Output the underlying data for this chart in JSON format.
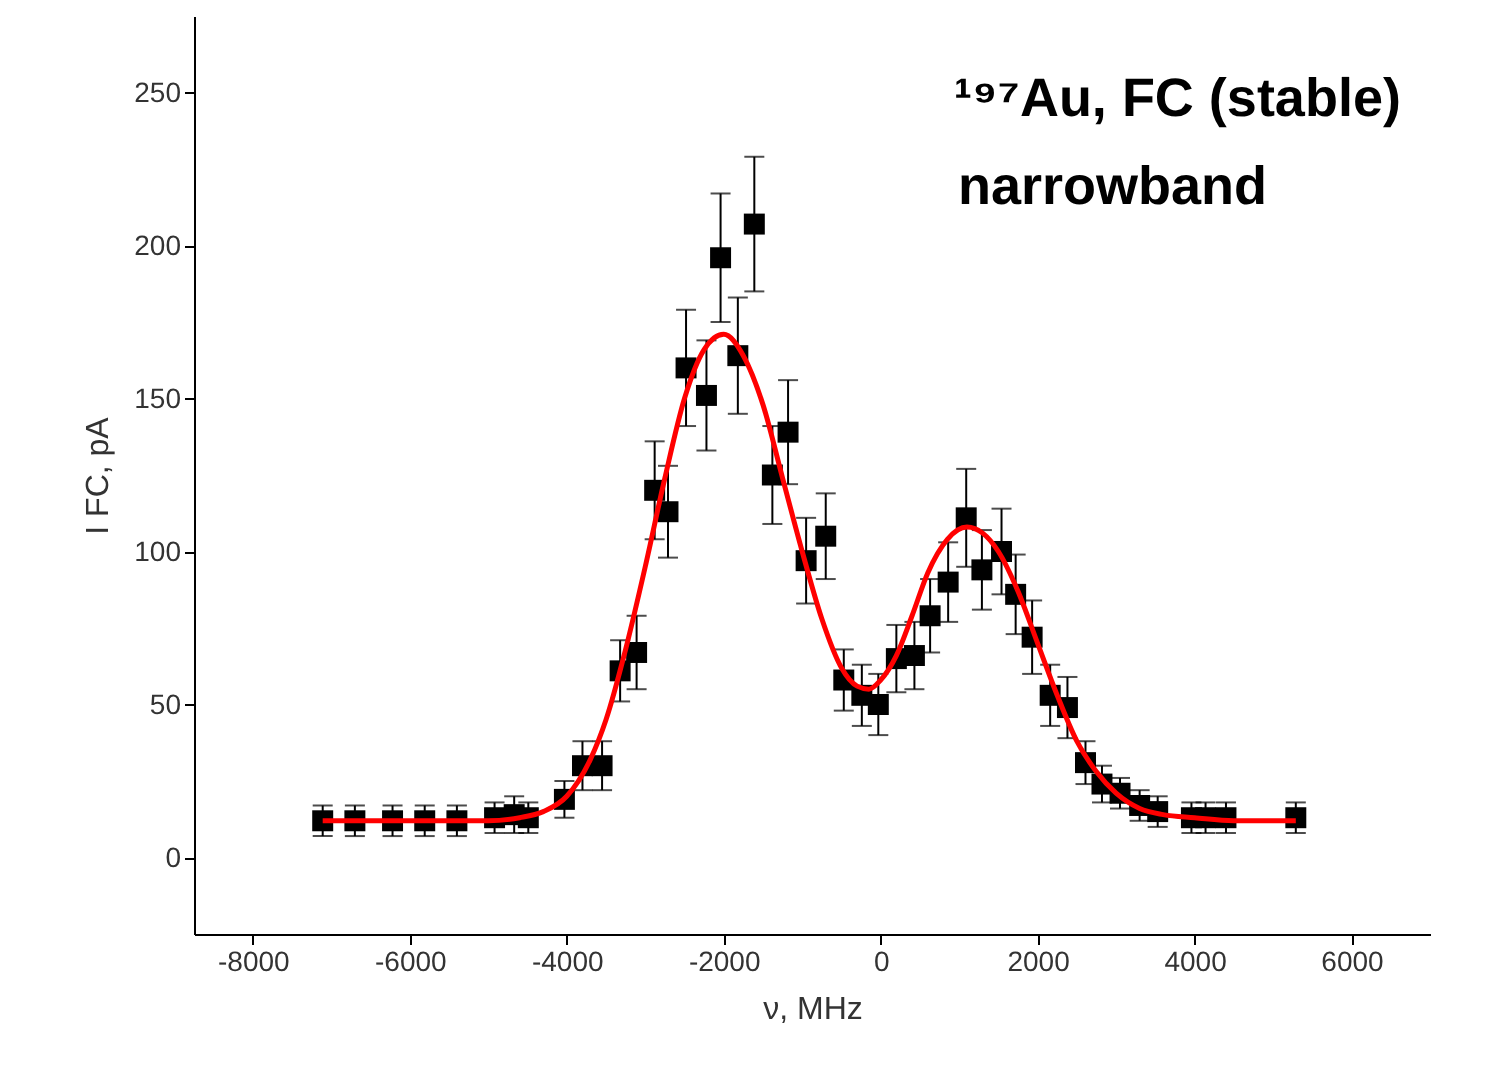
{
  "chart_data": {
    "type": "scatter",
    "xlabel": "ν, MHz",
    "ylabel": "I FC, pA",
    "annotations": [
      "¹⁹⁷Au, FC (stable)",
      "narrowband"
    ],
    "xlim": [
      -8750,
      7000
    ],
    "xticks": [
      -8000,
      -6000,
      -4000,
      -2000,
      0,
      2000,
      4000,
      6000
    ],
    "ylim": [
      -25,
      275
    ],
    "yticks": [
      0,
      50,
      100,
      150,
      200,
      250
    ],
    "grid": false,
    "series": [
      {
        "marker": "square",
        "color": "#000000",
        "x": [
          -7110,
          -6700,
          -6220,
          -5810,
          -5400,
          -4920,
          -4670,
          -4490,
          -4030,
          -3800,
          -3550,
          -3320,
          -3110,
          -2880,
          -2710,
          -2480,
          -2220,
          -2040,
          -1820,
          -1610,
          -1380,
          -1180,
          -950,
          -700,
          -470,
          -240,
          -30,
          200,
          430,
          630,
          860,
          1090,
          1290,
          1540,
          1720,
          1930,
          2160,
          2380,
          2610,
          2820,
          3050,
          3300,
          3530,
          3960,
          4140,
          4400,
          5290
        ],
        "values": [
          12,
          12,
          12,
          12,
          12,
          13,
          14,
          13,
          19,
          30,
          30,
          61,
          67,
          120,
          113,
          160,
          151,
          196,
          164,
          207,
          125,
          139,
          97,
          105,
          58,
          53,
          50,
          65,
          66,
          79,
          90,
          111,
          94,
          100,
          86,
          72,
          53,
          49,
          31,
          24,
          21,
          17,
          15,
          13,
          13,
          13,
          13
        ],
        "errors": [
          5,
          5,
          5,
          5,
          5,
          5,
          6,
          5,
          6,
          8,
          8,
          10,
          12,
          16,
          15,
          19,
          18,
          21,
          19,
          22,
          16,
          17,
          14,
          14,
          10,
          10,
          10,
          11,
          11,
          12,
          13,
          16,
          13,
          14,
          13,
          12,
          10,
          10,
          7,
          6,
          5,
          5,
          5,
          5,
          5,
          5,
          5
        ]
      },
      {
        "type": "line",
        "color": "#ff0000",
        "line_style": "solid",
        "marker": "none",
        "x": [
          -7110,
          -6000,
          -5000,
          -4600,
          -4300,
          -4000,
          -3700,
          -3500,
          -3250,
          -3000,
          -2750,
          -2500,
          -2250,
          -2000,
          -1750,
          -1500,
          -1250,
          -1000,
          -750,
          -500,
          -300,
          -150,
          0,
          200,
          400,
          600,
          850,
          1100,
          1300,
          1500,
          1750,
          2000,
          2250,
          2500,
          2750,
          3000,
          3300,
          3600,
          4000,
          4500,
          5290
        ],
        "values": [
          12,
          12,
          12,
          13,
          15,
          20,
          32,
          45,
          68,
          95,
          124,
          150,
          166,
          171,
          164,
          148,
          124,
          100,
          78,
          62,
          56,
          55,
          58,
          66,
          79,
          93,
          104,
          108,
          106,
          100,
          87,
          70,
          53,
          38,
          28,
          21,
          16,
          14,
          13,
          12,
          12
        ]
      }
    ]
  }
}
